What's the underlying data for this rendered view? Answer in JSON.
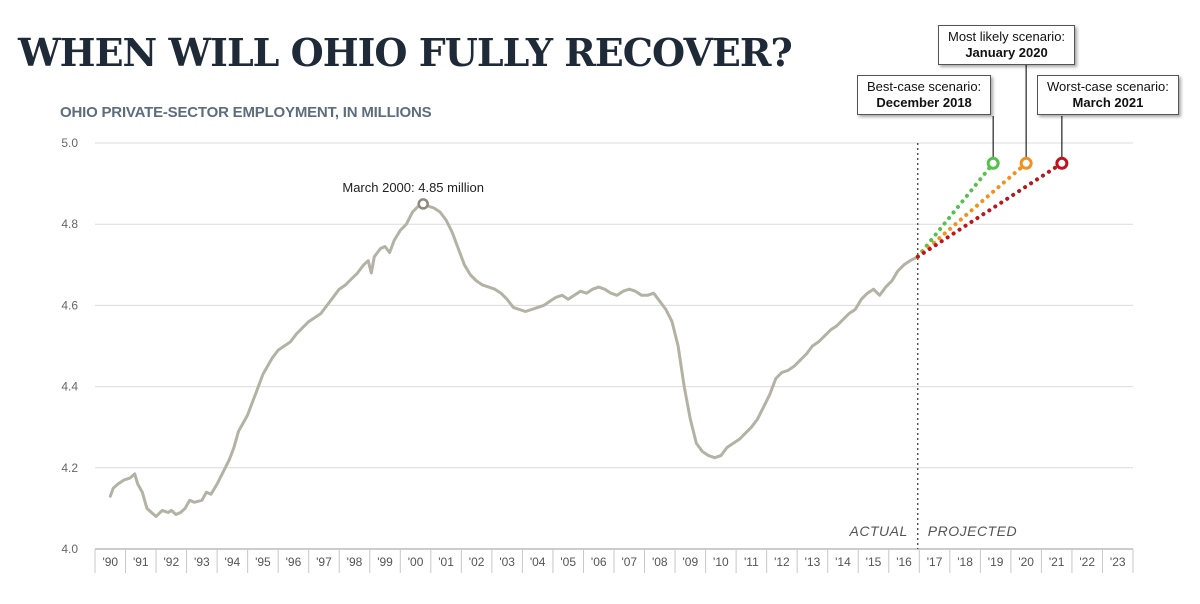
{
  "title": "WHEN WILL OHIO FULLY RECOVER?",
  "chart_data": {
    "type": "line",
    "title": "WHEN WILL OHIO FULLY RECOVER?",
    "subtitle": "OHIO PRIVATE-SECTOR EMPLOYMENT, IN MILLIONS",
    "xlabel": "",
    "ylabel": "",
    "ylim": [
      4.0,
      5.0
    ],
    "y_ticks": [
      "5.0",
      "4.8",
      "4.6",
      "4.4",
      "4.2",
      "4.0"
    ],
    "x_ticks": [
      "'90",
      "'91",
      "'92",
      "'93",
      "'94",
      "'95",
      "'96",
      "'97",
      "'98",
      "'99",
      "'00",
      "'01",
      "'02",
      "'03",
      "'04",
      "'05",
      "'06",
      "'07",
      "'08",
      "'09",
      "'10",
      "'11",
      "'12",
      "'13",
      "'14",
      "'15",
      "'16",
      "'17",
      "'18",
      "'19",
      "'20",
      "'21",
      "'22",
      "'23"
    ],
    "grid": true,
    "series": [
      {
        "name": "",
        "color": "#b3b2a5",
        "points": [
          [
            1990.0,
            4.13
          ],
          [
            1990.1,
            4.15
          ],
          [
            1990.25,
            4.16
          ],
          [
            1990.45,
            4.17
          ],
          [
            1990.65,
            4.175
          ],
          [
            1990.8,
            4.185
          ],
          [
            1990.9,
            4.16
          ],
          [
            1991.05,
            4.14
          ],
          [
            1991.2,
            4.1
          ],
          [
            1991.35,
            4.09
          ],
          [
            1991.5,
            4.08
          ],
          [
            1991.7,
            4.095
          ],
          [
            1991.9,
            4.09
          ],
          [
            1992.0,
            4.095
          ],
          [
            1992.15,
            4.085
          ],
          [
            1992.3,
            4.09
          ],
          [
            1992.45,
            4.1
          ],
          [
            1992.6,
            4.12
          ],
          [
            1992.75,
            4.115
          ],
          [
            1993.0,
            4.12
          ],
          [
            1993.15,
            4.14
          ],
          [
            1993.3,
            4.135
          ],
          [
            1993.5,
            4.16
          ],
          [
            1993.7,
            4.19
          ],
          [
            1993.9,
            4.22
          ],
          [
            1994.05,
            4.25
          ],
          [
            1994.2,
            4.29
          ],
          [
            1994.35,
            4.31
          ],
          [
            1994.5,
            4.33
          ],
          [
            1994.65,
            4.36
          ],
          [
            1994.8,
            4.39
          ],
          [
            1995.0,
            4.43
          ],
          [
            1995.15,
            4.45
          ],
          [
            1995.3,
            4.47
          ],
          [
            1995.5,
            4.49
          ],
          [
            1995.7,
            4.5
          ],
          [
            1995.9,
            4.51
          ],
          [
            1996.1,
            4.53
          ],
          [
            1996.3,
            4.545
          ],
          [
            1996.5,
            4.56
          ],
          [
            1996.7,
            4.57
          ],
          [
            1996.9,
            4.58
          ],
          [
            1997.1,
            4.6
          ],
          [
            1997.3,
            4.62
          ],
          [
            1997.5,
            4.64
          ],
          [
            1997.7,
            4.65
          ],
          [
            1997.9,
            4.665
          ],
          [
            1998.1,
            4.68
          ],
          [
            1998.3,
            4.7
          ],
          [
            1998.45,
            4.71
          ],
          [
            1998.55,
            4.68
          ],
          [
            1998.65,
            4.72
          ],
          [
            1998.85,
            4.74
          ],
          [
            1999.0,
            4.745
          ],
          [
            1999.15,
            4.73
          ],
          [
            1999.3,
            4.76
          ],
          [
            1999.5,
            4.785
          ],
          [
            1999.7,
            4.8
          ],
          [
            1999.9,
            4.83
          ],
          [
            2000.1,
            4.845
          ],
          [
            2000.25,
            4.85
          ],
          [
            2000.4,
            4.845
          ],
          [
            2000.6,
            4.84
          ],
          [
            2000.8,
            4.83
          ],
          [
            2001.0,
            4.81
          ],
          [
            2001.2,
            4.78
          ],
          [
            2001.4,
            4.74
          ],
          [
            2001.6,
            4.7
          ],
          [
            2001.8,
            4.675
          ],
          [
            2002.0,
            4.66
          ],
          [
            2002.2,
            4.65
          ],
          [
            2002.4,
            4.645
          ],
          [
            2002.6,
            4.64
          ],
          [
            2002.8,
            4.63
          ],
          [
            2003.0,
            4.615
          ],
          [
            2003.2,
            4.595
          ],
          [
            2003.4,
            4.59
          ],
          [
            2003.6,
            4.585
          ],
          [
            2003.8,
            4.59
          ],
          [
            2004.0,
            4.595
          ],
          [
            2004.2,
            4.6
          ],
          [
            2004.4,
            4.61
          ],
          [
            2004.6,
            4.62
          ],
          [
            2004.8,
            4.625
          ],
          [
            2005.0,
            4.615
          ],
          [
            2005.2,
            4.625
          ],
          [
            2005.4,
            4.635
          ],
          [
            2005.6,
            4.63
          ],
          [
            2005.8,
            4.64
          ],
          [
            2006.0,
            4.645
          ],
          [
            2006.2,
            4.64
          ],
          [
            2006.4,
            4.63
          ],
          [
            2006.6,
            4.625
          ],
          [
            2006.8,
            4.635
          ],
          [
            2007.0,
            4.64
          ],
          [
            2007.2,
            4.635
          ],
          [
            2007.4,
            4.625
          ],
          [
            2007.6,
            4.625
          ],
          [
            2007.8,
            4.63
          ],
          [
            2008.0,
            4.61
          ],
          [
            2008.2,
            4.59
          ],
          [
            2008.4,
            4.56
          ],
          [
            2008.6,
            4.5
          ],
          [
            2008.8,
            4.4
          ],
          [
            2009.0,
            4.32
          ],
          [
            2009.2,
            4.26
          ],
          [
            2009.4,
            4.24
          ],
          [
            2009.6,
            4.23
          ],
          [
            2009.8,
            4.225
          ],
          [
            2010.0,
            4.23
          ],
          [
            2010.2,
            4.25
          ],
          [
            2010.4,
            4.26
          ],
          [
            2010.6,
            4.27
          ],
          [
            2010.8,
            4.285
          ],
          [
            2011.0,
            4.3
          ],
          [
            2011.2,
            4.32
          ],
          [
            2011.4,
            4.35
          ],
          [
            2011.6,
            4.38
          ],
          [
            2011.8,
            4.42
          ],
          [
            2012.0,
            4.435
          ],
          [
            2012.2,
            4.44
          ],
          [
            2012.4,
            4.45
          ],
          [
            2012.6,
            4.465
          ],
          [
            2012.8,
            4.48
          ],
          [
            2013.0,
            4.5
          ],
          [
            2013.2,
            4.51
          ],
          [
            2013.4,
            4.525
          ],
          [
            2013.6,
            4.54
          ],
          [
            2013.8,
            4.55
          ],
          [
            2014.0,
            4.565
          ],
          [
            2014.2,
            4.58
          ],
          [
            2014.4,
            4.59
          ],
          [
            2014.6,
            4.615
          ],
          [
            2014.8,
            4.63
          ],
          [
            2015.0,
            4.64
          ],
          [
            2015.2,
            4.625
          ],
          [
            2015.4,
            4.645
          ],
          [
            2015.6,
            4.66
          ],
          [
            2015.8,
            4.685
          ],
          [
            2016.0,
            4.7
          ],
          [
            2016.2,
            4.71
          ],
          [
            2016.45,
            4.72
          ]
        ]
      },
      {
        "name": "Best-case scenario",
        "style": "dotted",
        "color": "#54c24a",
        "points": [
          [
            2016.45,
            4.72
          ],
          [
            2018.92,
            4.95
          ]
        ]
      },
      {
        "name": "Most likely scenario",
        "style": "dotted",
        "color": "#f4901e",
        "points": [
          [
            2016.45,
            4.72
          ],
          [
            2020.0,
            4.95
          ]
        ]
      },
      {
        "name": "Worst-case scenario",
        "style": "dotted",
        "color": "#c0141b",
        "points": [
          [
            2016.45,
            4.72
          ],
          [
            2021.17,
            4.95
          ]
        ]
      }
    ],
    "annotations": [
      {
        "text": "March 2000: 4.85 million",
        "x": 2000.25,
        "y": 4.85
      }
    ],
    "divider": {
      "x": 2016.45,
      "left_label": "ACTUAL",
      "right_label": "PROJECTED"
    },
    "scenario_callouts": [
      {
        "label": "Best-case scenario:",
        "date": "December 2018",
        "x": 2018.92,
        "y": 4.95,
        "color": "#54c24a"
      },
      {
        "label": "Most likely scenario:",
        "date": "January 2020",
        "x": 2020.0,
        "y": 4.95,
        "color": "#f4901e"
      },
      {
        "label": "Worst-case scenario:",
        "date": "March 2021",
        "x": 2021.17,
        "y": 4.95,
        "color": "#c0141b"
      }
    ]
  }
}
